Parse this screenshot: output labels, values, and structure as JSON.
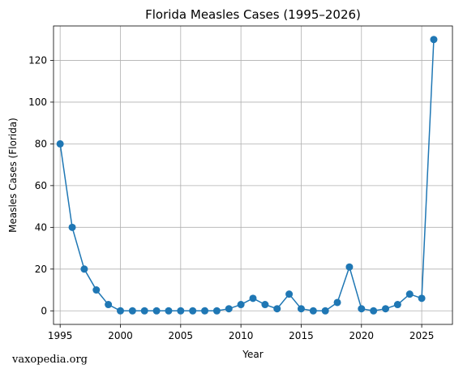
{
  "chart_data": {
    "type": "line",
    "title": "Florida Measles Cases (1995–2026)",
    "xlabel": "Year",
    "ylabel": "Measles Cases (Florida)",
    "xlim": [
      1994.45,
      2027.55
    ],
    "ylim": [
      -6.5,
      136.5
    ],
    "xticks": [
      1995,
      2000,
      2005,
      2010,
      2015,
      2020,
      2025
    ],
    "yticks": [
      0,
      20,
      40,
      60,
      80,
      100,
      120
    ],
    "grid": true,
    "marker": "circle",
    "color": "#1f77b4",
    "series": [
      {
        "x": [
          1995,
          1996,
          1997,
          1998,
          1999,
          2000,
          2001,
          2002,
          2003,
          2004,
          2005,
          2006,
          2007,
          2008,
          2009,
          2010,
          2011,
          2012,
          2013,
          2014,
          2015,
          2016,
          2017,
          2018,
          2019,
          2020,
          2021,
          2022,
          2023,
          2024,
          2025,
          2026
        ],
        "values": [
          80,
          40,
          20,
          10,
          3,
          0,
          0,
          0,
          0,
          0,
          0,
          0,
          0,
          0,
          1,
          3,
          6,
          3,
          1,
          8,
          1,
          0,
          0,
          4,
          21,
          1,
          0,
          1,
          3,
          8,
          6,
          130
        ]
      }
    ]
  },
  "watermark": "vaxopedia.org"
}
